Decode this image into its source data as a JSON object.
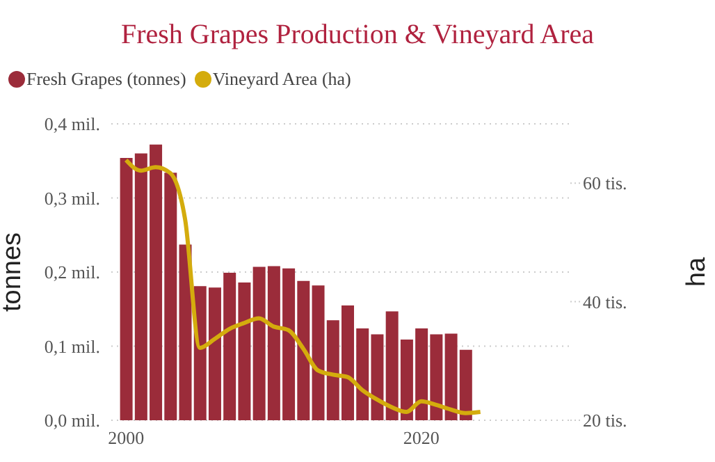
{
  "chart_data": {
    "type": "bar",
    "title": "Fresh Grapes Production & Vineyard Area",
    "ylabel": "tonnes",
    "y2label": "ha",
    "x": [
      2000,
      2001,
      2002,
      2003,
      2004,
      2005,
      2006,
      2007,
      2008,
      2009,
      2010,
      2011,
      2012,
      2013,
      2014,
      2015,
      2016,
      2017,
      2018,
      2019,
      2020,
      2021,
      2022,
      2023
    ],
    "series": [
      {
        "name": "Fresh Grapes (tonnes)",
        "color": "#9b2c3a",
        "values": [
          0.354,
          0.36,
          0.372,
          0.334,
          0.237,
          0.181,
          0.179,
          0.199,
          0.186,
          0.207,
          0.208,
          0.205,
          0.188,
          0.182,
          0.135,
          0.155,
          0.124,
          0.116,
          0.147,
          0.109,
          0.124,
          0.116,
          0.117,
          0.095
        ]
      },
      {
        "name": "Vineyard Area (ha)",
        "type": "line",
        "axis": "y2",
        "color": "#d4ac0d",
        "x": [
          2000,
          2001,
          2002,
          2003,
          2004,
          2005,
          2006,
          2007,
          2008,
          2009,
          2010,
          2011,
          2012,
          2013,
          2014,
          2015,
          2016,
          2017,
          2018,
          2019,
          2020,
          2021,
          2022,
          2023,
          2024
        ],
        "values": [
          63.9,
          62.1,
          62.7,
          61.7,
          53.9,
          32.2,
          33.7,
          35.4,
          36.4,
          37.2,
          35.8,
          35.2,
          32.1,
          28.4,
          27.7,
          27.3,
          25.1,
          23.5,
          22.2,
          21.4,
          23.2,
          22.6,
          21.8,
          21.2,
          21.4
        ]
      }
    ],
    "xlim": [
      1999,
      2030
    ],
    "xticks": [
      2000,
      2020
    ],
    "ylim": [
      0,
      0.4
    ],
    "yticks": [
      {
        "value": 0,
        "label": "0,0 mil."
      },
      {
        "value": 0.1,
        "label": "0,1 mil."
      },
      {
        "value": 0.2,
        "label": "0,2 mil."
      },
      {
        "value": 0.3,
        "label": "0,3 mil."
      },
      {
        "value": 0.4,
        "label": "0,4 mil."
      }
    ],
    "y2lim": [
      20,
      70
    ],
    "y2ticks": [
      {
        "value": 20,
        "label": "20 tis."
      },
      {
        "value": 40,
        "label": "40 tis."
      },
      {
        "value": 60,
        "label": "60 tis."
      }
    ],
    "grid": "y",
    "legend": "top left",
    "marker": "none",
    "line_style": "solid"
  }
}
